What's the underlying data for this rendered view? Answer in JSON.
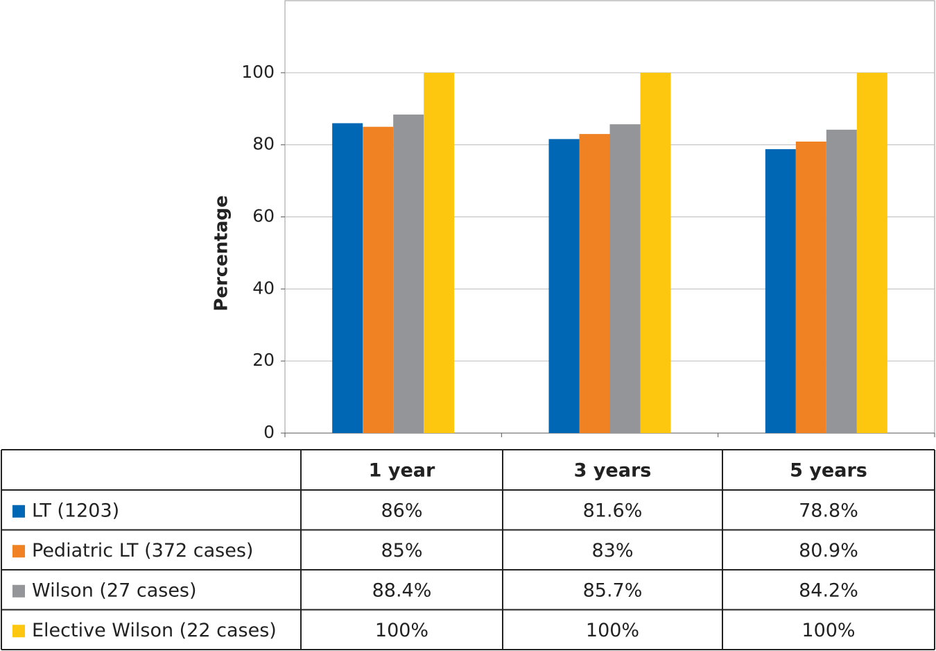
{
  "chart_data": {
    "type": "bar",
    "y_label": "Percentage",
    "categories": [
      "1 year",
      "3 years",
      "5 years"
    ],
    "series": [
      {
        "name": "LT (1203)",
        "color": "#0067b4",
        "values": [
          86,
          81.6,
          78.8
        ],
        "value_labels": [
          "86%",
          "81.6%",
          "78.8%"
        ]
      },
      {
        "name": "Pediatric LT (372 cases)",
        "color": "#f08223",
        "values": [
          85,
          83,
          80.9
        ],
        "value_labels": [
          "85%",
          "83%",
          "80.9%"
        ]
      },
      {
        "name": "Wilson (27 cases)",
        "color": "#939598",
        "values": [
          88.4,
          85.7,
          84.2
        ],
        "value_labels": [
          "88.4%",
          "85.7%",
          "84.2%"
        ]
      },
      {
        "name": "Elective Wilson (22 cases)",
        "color": "#fdc70f",
        "values": [
          100,
          100,
          100
        ],
        "value_labels": [
          "100%",
          "100%",
          "100%"
        ]
      }
    ],
    "ylim": [
      0,
      120
    ],
    "yticks": [
      0,
      20,
      40,
      60,
      80,
      100
    ],
    "grid": true
  }
}
